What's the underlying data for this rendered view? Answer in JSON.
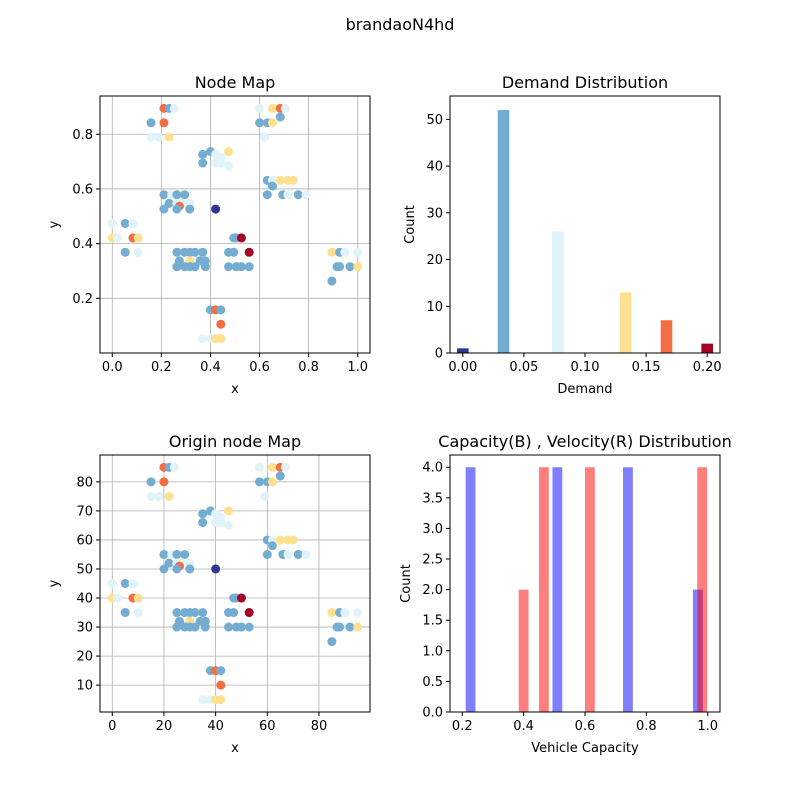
{
  "figure_title": "brandaoN4hd",
  "chart_data": [
    {
      "id": "node-map",
      "type": "scatter",
      "title": "Node Map",
      "xlabel": "x",
      "ylabel": "y",
      "xlim": [
        -0.05,
        1.05
      ],
      "ylim": [
        0.0,
        0.94
      ],
      "xticks": [
        0.0,
        0.2,
        0.4,
        0.6,
        0.8,
        1.0
      ],
      "xtick_labels": [
        "0.0",
        "0.2",
        "0.4",
        "0.6",
        "0.8",
        "1.0"
      ],
      "yticks": [
        0.2,
        0.4,
        0.6,
        0.8
      ],
      "ytick_labels": [
        "0.2",
        "0.4",
        "0.6",
        "0.8"
      ],
      "grid": true
    },
    {
      "id": "demand-dist",
      "type": "bar",
      "title": "Demand Distribution",
      "xlabel": "Demand",
      "ylabel": "Count",
      "xlim": [
        -0.0105,
        0.2105
      ],
      "ylim": [
        0,
        55
      ],
      "xticks": [
        0.0,
        0.05,
        0.1,
        0.15,
        0.2
      ],
      "xtick_labels": [
        "0.00",
        "0.05",
        "0.10",
        "0.15",
        "0.20"
      ],
      "yticks": [
        0,
        10,
        20,
        30,
        40,
        50
      ],
      "ytick_labels": [
        "0",
        "10",
        "20",
        "30",
        "40",
        "50"
      ],
      "bar_width": 0.0095,
      "bars": [
        {
          "x": 0.0,
          "value": 1,
          "color": "#313695"
        },
        {
          "x": 0.0333,
          "value": 52,
          "color": "#74add1"
        },
        {
          "x": 0.0667,
          "value": 0,
          "color": "#ffffff"
        },
        {
          "x": 0.0778,
          "value": 26,
          "color": "#e0f3f8"
        },
        {
          "x": 0.1,
          "value": 0,
          "color": "#ffffff"
        },
        {
          "x": 0.1333,
          "value": 13,
          "color": "#fee090"
        },
        {
          "x": 0.1667,
          "value": 7,
          "color": "#f46d43"
        },
        {
          "x": 0.2,
          "value": 2,
          "color": "#a50026"
        }
      ],
      "grid": false
    },
    {
      "id": "origin-map",
      "type": "scatter",
      "title": "Origin node Map",
      "xlabel": "x",
      "ylabel": "y",
      "xlim": [
        -4.75,
        99.75
      ],
      "ylim": [
        0.75,
        89.25
      ],
      "xticks": [
        0,
        20,
        40,
        60,
        80
      ],
      "xtick_labels": [
        "0",
        "20",
        "40",
        "60",
        "80"
      ],
      "yticks": [
        10,
        20,
        30,
        40,
        50,
        60,
        70,
        80
      ],
      "ytick_labels": [
        "10",
        "20",
        "30",
        "40",
        "50",
        "60",
        "70",
        "80"
      ],
      "grid": true
    },
    {
      "id": "capacity-dist",
      "type": "bar",
      "title": "Capacity(B) , Velocity(R)  Distribution",
      "xlabel": "Vehicle Capacity",
      "ylabel": "Count",
      "xlim": [
        0.16,
        1.04
      ],
      "ylim": [
        0,
        4.2
      ],
      "xticks": [
        0.2,
        0.4,
        0.6,
        0.8,
        1.0
      ],
      "xtick_labels": [
        "0.2",
        "0.4",
        "0.6",
        "0.8",
        "1.0"
      ],
      "yticks": [
        0,
        0.5,
        1.0,
        1.5,
        2.0,
        2.5,
        3.0,
        3.5,
        4.0
      ],
      "ytick_labels": [
        "0.0",
        "0.5",
        "1.0",
        "1.5",
        "2.0",
        "2.5",
        "3.0",
        "3.5",
        "4.0"
      ],
      "bar_width": 0.032,
      "series": [
        {
          "name": "Capacity",
          "color": "#0000ff",
          "alpha": 0.5,
          "bars": [
            {
              "x": 0.227,
              "value": 4
            },
            {
              "x": 0.51,
              "value": 4
            },
            {
              "x": 0.74,
              "value": 4
            },
            {
              "x": 0.968,
              "value": 2
            }
          ]
        },
        {
          "name": "Velocity",
          "color": "#ff0000",
          "alpha": 0.5,
          "bars": [
            {
              "x": 0.4,
              "value": 2
            },
            {
              "x": 0.466,
              "value": 4
            },
            {
              "x": 0.616,
              "value": 4
            },
            {
              "x": 0.982,
              "value": 4
            }
          ]
        }
      ],
      "grid": false
    }
  ],
  "nodes": {
    "color_scale": {
      "1": "#313695",
      "2": "#74add1",
      "3": "#e0f3f8",
      "4": "#fee090",
      "5": "#f46d43",
      "6": "#a50026"
    },
    "points": [
      [
        40,
        50,
        1
      ],
      [
        20,
        85,
        5
      ],
      [
        22,
        85,
        2
      ],
      [
        24,
        85,
        3
      ],
      [
        15,
        80,
        2
      ],
      [
        20,
        80,
        5
      ],
      [
        15,
        75,
        3
      ],
      [
        18,
        75,
        3
      ],
      [
        22,
        75,
        4
      ],
      [
        57,
        85,
        3
      ],
      [
        62,
        85,
        4
      ],
      [
        65,
        85,
        5
      ],
      [
        67,
        85,
        3
      ],
      [
        57,
        80,
        2
      ],
      [
        60,
        80,
        2
      ],
      [
        62,
        80,
        4
      ],
      [
        65,
        82,
        2
      ],
      [
        59,
        75,
        3
      ],
      [
        35,
        69,
        2
      ],
      [
        38,
        70,
        2
      ],
      [
        40,
        69,
        3
      ],
      [
        42,
        68,
        3
      ],
      [
        45,
        70,
        4
      ],
      [
        35,
        66,
        2
      ],
      [
        42,
        66,
        3
      ],
      [
        45,
        65,
        3
      ],
      [
        40,
        66,
        3
      ],
      [
        60,
        60,
        2
      ],
      [
        62,
        60,
        3
      ],
      [
        65,
        60,
        4
      ],
      [
        68,
        60,
        4
      ],
      [
        70,
        60,
        4
      ],
      [
        62,
        58,
        2
      ],
      [
        60,
        55,
        2
      ],
      [
        66,
        55,
        2
      ],
      [
        68,
        55,
        3
      ],
      [
        72,
        55,
        2
      ],
      [
        75,
        55,
        3
      ],
      [
        20,
        55,
        2
      ],
      [
        23,
        55,
        3
      ],
      [
        25,
        55,
        2
      ],
      [
        28,
        55,
        2
      ],
      [
        22,
        52,
        2
      ],
      [
        25,
        52,
        3
      ],
      [
        27,
        52,
        3
      ],
      [
        30,
        52,
        3
      ],
      [
        26,
        51,
        5
      ],
      [
        30,
        50,
        2
      ],
      [
        25,
        50,
        2
      ],
      [
        20,
        50,
        2
      ],
      [
        0,
        45,
        3
      ],
      [
        5,
        45,
        2
      ],
      [
        8,
        45,
        3
      ],
      [
        0,
        40,
        4
      ],
      [
        2,
        40,
        3
      ],
      [
        8,
        40,
        5
      ],
      [
        10,
        40,
        4
      ],
      [
        5,
        35,
        2
      ],
      [
        10,
        35,
        3
      ],
      [
        25,
        35,
        2
      ],
      [
        28,
        35,
        2
      ],
      [
        30,
        35,
        2
      ],
      [
        32,
        35,
        2
      ],
      [
        35,
        35,
        2
      ],
      [
        26,
        32,
        2
      ],
      [
        30,
        32,
        4
      ],
      [
        34,
        32,
        2
      ],
      [
        36,
        32,
        2
      ],
      [
        25,
        30,
        2
      ],
      [
        28,
        30,
        2
      ],
      [
        30,
        30,
        2
      ],
      [
        32,
        30,
        2
      ],
      [
        36,
        30,
        2
      ],
      [
        47,
        40,
        2
      ],
      [
        48,
        40,
        2
      ],
      [
        50,
        40,
        6
      ],
      [
        45,
        35,
        2
      ],
      [
        47,
        35,
        2
      ],
      [
        53,
        35,
        6
      ],
      [
        45,
        30,
        2
      ],
      [
        48,
        30,
        2
      ],
      [
        50,
        30,
        2
      ],
      [
        53,
        30,
        2
      ],
      [
        85,
        35,
        4
      ],
      [
        88,
        35,
        2
      ],
      [
        90,
        35,
        3
      ],
      [
        95,
        35,
        3
      ],
      [
        87,
        30,
        2
      ],
      [
        88,
        30,
        2
      ],
      [
        92,
        30,
        2
      ],
      [
        95,
        30,
        4
      ],
      [
        85,
        25,
        2
      ],
      [
        38,
        15,
        2
      ],
      [
        40,
        15,
        5
      ],
      [
        42,
        15,
        2
      ],
      [
        42,
        10,
        5
      ],
      [
        35,
        5,
        3
      ],
      [
        38,
        5,
        3
      ],
      [
        40,
        5,
        4
      ],
      [
        42,
        5,
        4
      ]
    ]
  }
}
